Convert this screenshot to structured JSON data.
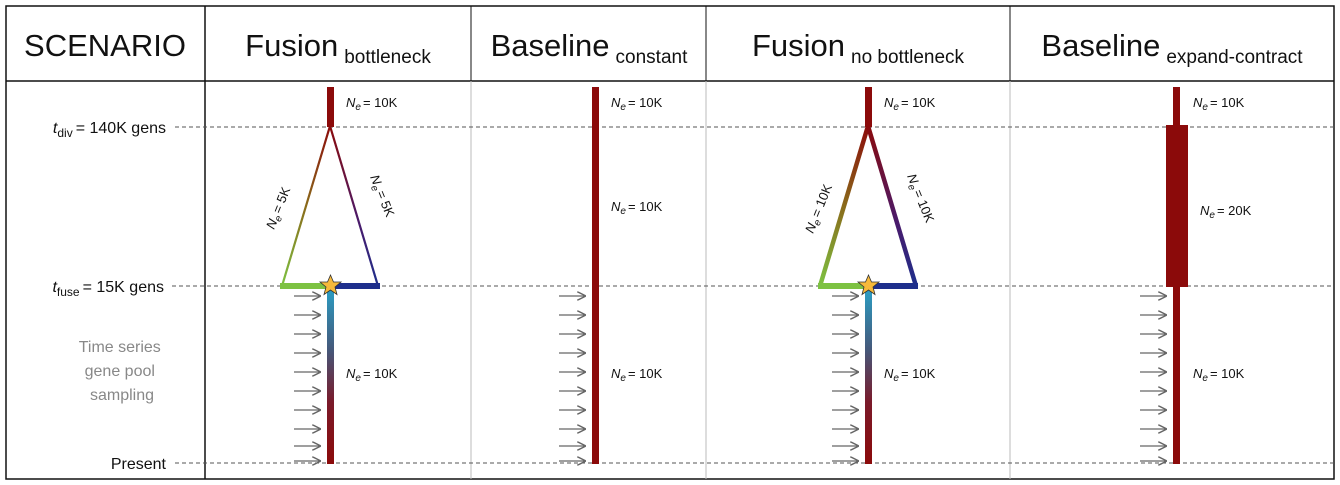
{
  "header": {
    "scenario_label": "SCENARIO",
    "columns": [
      {
        "main": "Fusion",
        "sub": "bottleneck"
      },
      {
        "main": "Baseline",
        "sub": "constant"
      },
      {
        "main": "Fusion",
        "sub": "no bottleneck"
      },
      {
        "main": "Baseline",
        "sub": "expand-contract"
      }
    ]
  },
  "rows": {
    "t_div": {
      "symbol": "t",
      "subscript": "div",
      "value": "= 140K gens"
    },
    "t_fuse": {
      "symbol": "t",
      "subscript": "fuse",
      "value": "= 15K gens"
    },
    "sampling": [
      "Time series",
      "gene pool",
      "sampling"
    ],
    "present": "Present"
  },
  "ne": {
    "symbol": "N",
    "subscript": "e",
    "fusion_bottleneck": {
      "top": "= 10K",
      "left": "= 5K",
      "right": "= 5K",
      "bottom": "= 10K"
    },
    "baseline_constant": {
      "top": "= 10K",
      "mid": "= 10K",
      "bottom": "= 10K"
    },
    "fusion_no_bottleneck": {
      "top": "= 10K",
      "left": "= 10K",
      "right": "= 10K",
      "bottom": "= 10K"
    },
    "baseline_expand_contract": {
      "top": "= 10K",
      "mid": "= 20K",
      "bottom": "= 10K"
    }
  },
  "colors": {
    "dark_red": "#8b0a0a",
    "green": "#7dc242",
    "navy": "#1e2f8c",
    "teal": "#2a8fb5",
    "star": "#f6b93b",
    "arrow": "#666666"
  }
}
